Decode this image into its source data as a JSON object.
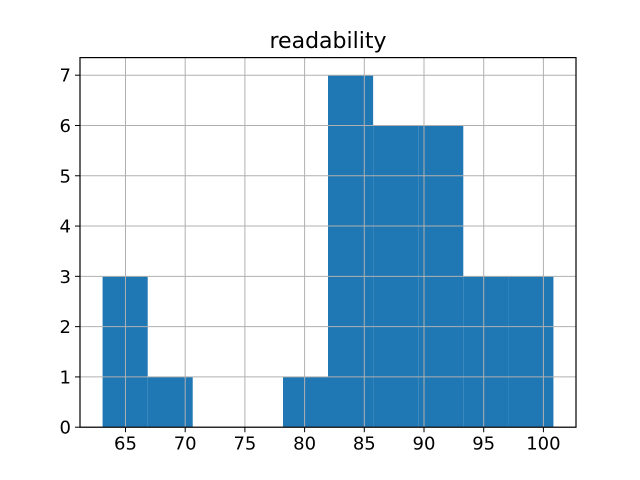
{
  "chart_data": {
    "type": "bar",
    "subtype": "histogram",
    "title": "readability",
    "xlabel": "",
    "ylabel": "",
    "bin_edges": [
      63.08,
      66.86,
      70.63,
      74.41,
      78.19,
      81.96,
      85.74,
      89.52,
      93.29,
      97.07,
      100.84
    ],
    "counts": [
      3,
      1,
      0,
      0,
      1,
      7,
      6,
      6,
      3,
      3
    ],
    "xticks": [
      65,
      70,
      75,
      80,
      85,
      90,
      95,
      100
    ],
    "yticks": [
      0,
      1,
      2,
      3,
      4,
      5,
      6,
      7
    ],
    "xlim": [
      61.19,
      102.73
    ],
    "ylim": [
      0,
      7.35
    ],
    "grid": true,
    "grid_over_bars": true,
    "legend": null,
    "colors": {
      "bar": "#1f77b4",
      "grid": "#b0b0b0",
      "axis": "#000000",
      "text": "#000000",
      "background": "#ffffff"
    }
  }
}
